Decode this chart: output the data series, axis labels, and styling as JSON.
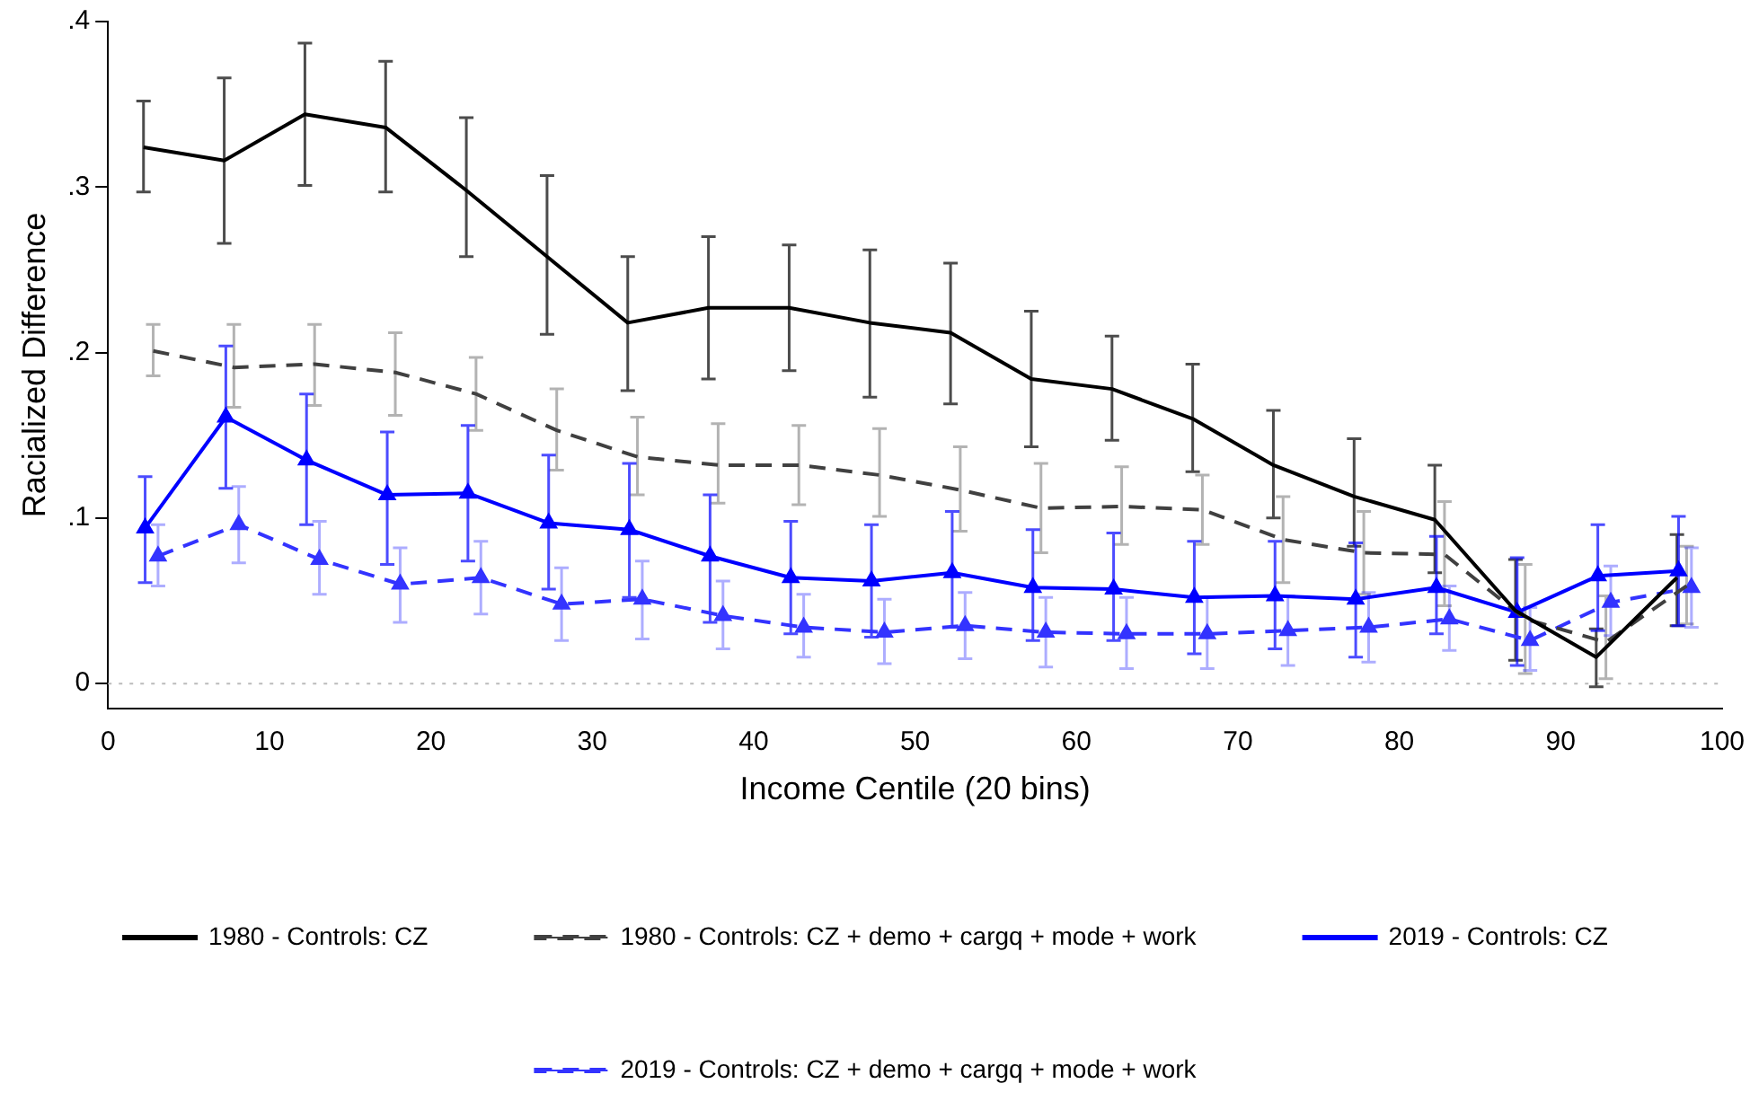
{
  "chart_data": {
    "type": "line",
    "xlabel": "Income Centile (20 bins)",
    "ylabel": "Racialized Difference",
    "xlim": [
      0,
      100
    ],
    "xticks": [
      0,
      10,
      20,
      30,
      40,
      50,
      60,
      70,
      80,
      90,
      100
    ],
    "ylim": [
      -0.015,
      0.4
    ],
    "yticks": [
      {
        "value": 0,
        "label": "0"
      },
      {
        "value": 0.1,
        "label": ".1"
      },
      {
        "value": 0.2,
        "label": ".2"
      },
      {
        "value": 0.3,
        "label": ".3"
      },
      {
        "value": 0.4,
        "label": ".4"
      }
    ],
    "grid": false,
    "legend": "bottom",
    "ref_lines": [
      {
        "axis": "y",
        "value": 0,
        "color": "#bbbbbb",
        "line_style": "dotted"
      }
    ],
    "series": [
      {
        "name": "1980 - Controls: CZ",
        "color": "#000000",
        "line_style": "solid",
        "marker": "none",
        "x": [
          2.2,
          7.2,
          12.2,
          17.2,
          22.2,
          27.2,
          32.2,
          37.2,
          42.2,
          47.2,
          52.2,
          57.2,
          62.2,
          67.2,
          72.2,
          77.2,
          82.2,
          87.2,
          92.2,
          97.2
        ],
        "values": [
          0.324,
          0.316,
          0.344,
          0.336,
          0.298,
          0.258,
          0.218,
          0.227,
          0.227,
          0.218,
          0.212,
          0.184,
          0.178,
          0.16,
          0.132,
          0.113,
          0.099,
          0.044,
          0.016,
          0.064
        ],
        "errors": [
          [
            0.297,
            0.352
          ],
          [
            0.266,
            0.366
          ],
          [
            0.301,
            0.387
          ],
          [
            0.297,
            0.376
          ],
          [
            0.258,
            0.342
          ],
          [
            0.211,
            0.307
          ],
          [
            0.177,
            0.258
          ],
          [
            0.184,
            0.27
          ],
          [
            0.189,
            0.265
          ],
          [
            0.173,
            0.262
          ],
          [
            0.169,
            0.254
          ],
          [
            0.143,
            0.225
          ],
          [
            0.147,
            0.21
          ],
          [
            0.128,
            0.193
          ],
          [
            0.1,
            0.165
          ],
          [
            0.083,
            0.148
          ],
          [
            0.067,
            0.132
          ],
          [
            0.014,
            0.075
          ],
          [
            -0.002,
            0.033
          ],
          [
            0.035,
            0.09
          ]
        ]
      },
      {
        "name": "1980 - Controls: CZ + demo + cargq + mode + work",
        "color": "#404040",
        "line_style": "dashed",
        "marker": "none",
        "x": [
          2.8,
          7.8,
          12.8,
          17.8,
          22.8,
          27.8,
          32.8,
          37.8,
          42.8,
          47.8,
          52.8,
          57.8,
          62.8,
          67.8,
          72.8,
          77.8,
          82.8,
          87.8,
          92.8,
          97.8
        ],
        "values": [
          0.201,
          0.191,
          0.193,
          0.188,
          0.175,
          0.153,
          0.137,
          0.132,
          0.132,
          0.126,
          0.117,
          0.106,
          0.107,
          0.105,
          0.087,
          0.079,
          0.078,
          0.039,
          0.025,
          0.059
        ],
        "errors": [
          [
            0.186,
            0.217
          ],
          [
            0.167,
            0.217
          ],
          [
            0.168,
            0.217
          ],
          [
            0.162,
            0.212
          ],
          [
            0.153,
            0.197
          ],
          [
            0.129,
            0.178
          ],
          [
            0.114,
            0.161
          ],
          [
            0.109,
            0.157
          ],
          [
            0.108,
            0.156
          ],
          [
            0.101,
            0.154
          ],
          [
            0.092,
            0.143
          ],
          [
            0.079,
            0.133
          ],
          [
            0.084,
            0.131
          ],
          [
            0.084,
            0.126
          ],
          [
            0.061,
            0.113
          ],
          [
            0.054,
            0.104
          ],
          [
            0.047,
            0.11
          ],
          [
            0.006,
            0.072
          ],
          [
            0.003,
            0.053
          ],
          [
            0.036,
            0.083
          ]
        ]
      },
      {
        "name": "2019 - Controls: CZ",
        "color": "#0000ff",
        "line_style": "solid",
        "marker": "triangle",
        "x": [
          2.3,
          7.3,
          12.3,
          17.3,
          22.3,
          27.3,
          32.3,
          37.3,
          42.3,
          47.3,
          52.3,
          57.3,
          62.3,
          67.3,
          72.3,
          77.3,
          82.3,
          87.3,
          92.3,
          97.3
        ],
        "values": [
          0.094,
          0.161,
          0.135,
          0.114,
          0.115,
          0.097,
          0.093,
          0.077,
          0.064,
          0.062,
          0.067,
          0.058,
          0.057,
          0.052,
          0.053,
          0.051,
          0.058,
          0.043,
          0.065,
          0.068
        ],
        "errors": [
          [
            0.061,
            0.125
          ],
          [
            0.118,
            0.204
          ],
          [
            0.096,
            0.175
          ],
          [
            0.072,
            0.152
          ],
          [
            0.074,
            0.156
          ],
          [
            0.057,
            0.138
          ],
          [
            0.052,
            0.133
          ],
          [
            0.037,
            0.114
          ],
          [
            0.03,
            0.098
          ],
          [
            0.028,
            0.096
          ],
          [
            0.034,
            0.104
          ],
          [
            0.026,
            0.093
          ],
          [
            0.026,
            0.091
          ],
          [
            0.018,
            0.086
          ],
          [
            0.021,
            0.086
          ],
          [
            0.016,
            0.085
          ],
          [
            0.03,
            0.089
          ],
          [
            0.011,
            0.076
          ],
          [
            0.032,
            0.096
          ],
          [
            0.035,
            0.101
          ]
        ]
      },
      {
        "name": "2019 - Controls: CZ + demo + cargq + mode + work",
        "color": "#3333ff",
        "line_style": "dashed",
        "marker": "triangle",
        "x": [
          3.1,
          8.1,
          13.1,
          18.1,
          23.1,
          28.1,
          33.1,
          38.1,
          43.1,
          48.1,
          53.1,
          58.1,
          63.1,
          68.1,
          73.1,
          78.1,
          83.1,
          88.1,
          93.1,
          98.1
        ],
        "values": [
          0.077,
          0.096,
          0.075,
          0.06,
          0.064,
          0.048,
          0.051,
          0.041,
          0.034,
          0.031,
          0.035,
          0.031,
          0.03,
          0.03,
          0.032,
          0.034,
          0.039,
          0.026,
          0.049,
          0.058
        ],
        "errors": [
          [
            0.059,
            0.096
          ],
          [
            0.073,
            0.119
          ],
          [
            0.054,
            0.098
          ],
          [
            0.037,
            0.082
          ],
          [
            0.042,
            0.086
          ],
          [
            0.026,
            0.07
          ],
          [
            0.027,
            0.074
          ],
          [
            0.021,
            0.062
          ],
          [
            0.016,
            0.054
          ],
          [
            0.012,
            0.051
          ],
          [
            0.015,
            0.055
          ],
          [
            0.01,
            0.052
          ],
          [
            0.009,
            0.052
          ],
          [
            0.009,
            0.052
          ],
          [
            0.011,
            0.053
          ],
          [
            0.013,
            0.055
          ],
          [
            0.02,
            0.059
          ],
          [
            0.008,
            0.046
          ],
          [
            0.029,
            0.071
          ],
          [
            0.034,
            0.082
          ]
        ]
      }
    ]
  }
}
